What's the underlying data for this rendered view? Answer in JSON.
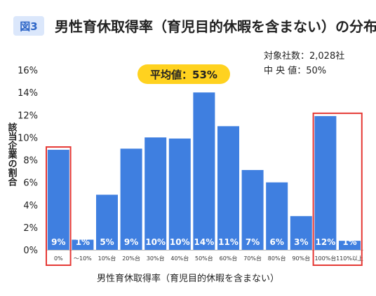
{
  "figure": {
    "label": "図3",
    "title": "男性育休取得率（育児目的休暇を含まない）の分布"
  },
  "stats": {
    "companies": "対象社数：2,028社",
    "median": "中 央 値：50%"
  },
  "colors": {
    "bar": "#3f7fe0",
    "highlight": "#e53935",
    "average_badge": "#ffd21f",
    "badge_bg": "#dbe7fb",
    "badge_text": "#2e66c7"
  },
  "chart_data": {
    "type": "bar",
    "title": "男性育休取得率（育児目的休暇を含まない）の分布",
    "xlabel": "男性育休取得率（育児目的休暇を含まない）",
    "ylabel": "該当企業の割合",
    "ylim": [
      0,
      16
    ],
    "yticks": [
      "0%",
      "2%",
      "4%",
      "6%",
      "8%",
      "10%",
      "12%",
      "14%",
      "16%"
    ],
    "grid": false,
    "categories": [
      "0%",
      "～10%",
      "10%台",
      "20%台",
      "30%台",
      "40%台",
      "50%台",
      "60%台",
      "70%台",
      "80%台",
      "90%台",
      "100%台",
      "110%以上"
    ],
    "values": [
      8.9,
      0.9,
      4.9,
      9.0,
      10.0,
      9.9,
      14.0,
      11.0,
      7.1,
      6.0,
      3.0,
      11.9,
      0.8
    ],
    "bar_labels": [
      "9%",
      "1%",
      "5%",
      "9%",
      "10%",
      "10%",
      "14%",
      "11%",
      "7%",
      "6%",
      "3%",
      "12%",
      "1%"
    ],
    "highlighted": [
      "0%",
      "100%台",
      "110%以上"
    ],
    "annotation": "平均値：53%"
  }
}
